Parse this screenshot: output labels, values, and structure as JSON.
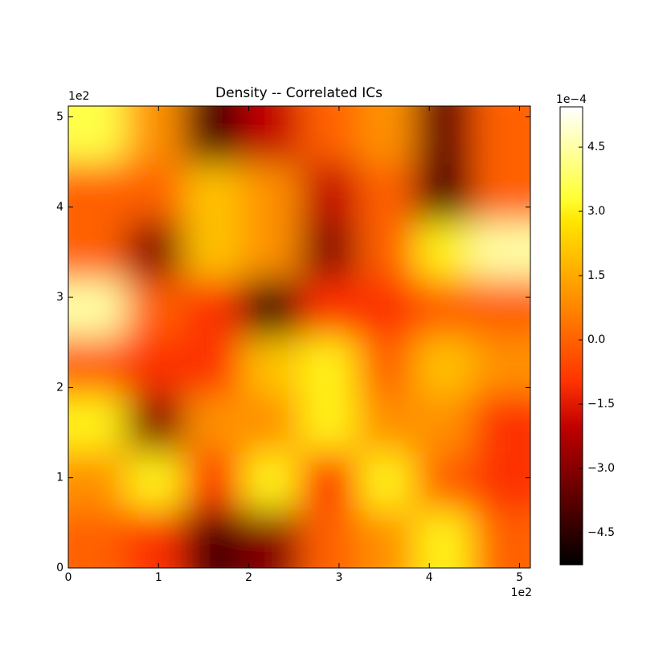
{
  "chart_data": {
    "type": "heatmap",
    "title": "Density -- Correlated ICs",
    "x_offset_label": "1e2",
    "y_offset_label": "1e2",
    "colorbar_offset_label": "1e−4",
    "xlim": [
      0,
      5.12
    ],
    "ylim": [
      0,
      5.12
    ],
    "xticks": [
      0,
      1,
      2,
      3,
      4,
      5
    ],
    "yticks": [
      0,
      1,
      2,
      3,
      4,
      5
    ],
    "z": [
      [
        3.5,
        1,
        -4,
        -2,
        0,
        1,
        -3.5,
        0
      ],
      [
        0,
        0,
        2,
        1,
        -2,
        0,
        -4,
        0
      ],
      [
        0,
        -3,
        2,
        1,
        -3,
        0,
        3,
        4.5
      ],
      [
        4.5,
        0,
        -1,
        -4.5,
        -1,
        -1,
        0,
        0
      ],
      [
        0,
        -1,
        -1,
        2,
        3,
        0,
        2,
        1
      ],
      [
        3,
        -3,
        1,
        1,
        3,
        1,
        1,
        -1
      ],
      [
        1,
        3,
        -1,
        3,
        -1,
        3,
        0,
        -1
      ],
      [
        0,
        -1,
        -4,
        -3,
        0,
        1,
        3,
        0
      ]
    ],
    "clim": [
      -5.25,
      5.44
    ],
    "cticks": [
      {
        "value": -4.5,
        "label": "−4.5"
      },
      {
        "value": -3,
        "label": "−3.0"
      },
      {
        "value": -1.5,
        "label": "−1.5"
      },
      {
        "value": 0,
        "label": "0.0"
      },
      1.5,
      {
        "value": 3,
        "label": "3.0"
      },
      4.5
    ]
  }
}
